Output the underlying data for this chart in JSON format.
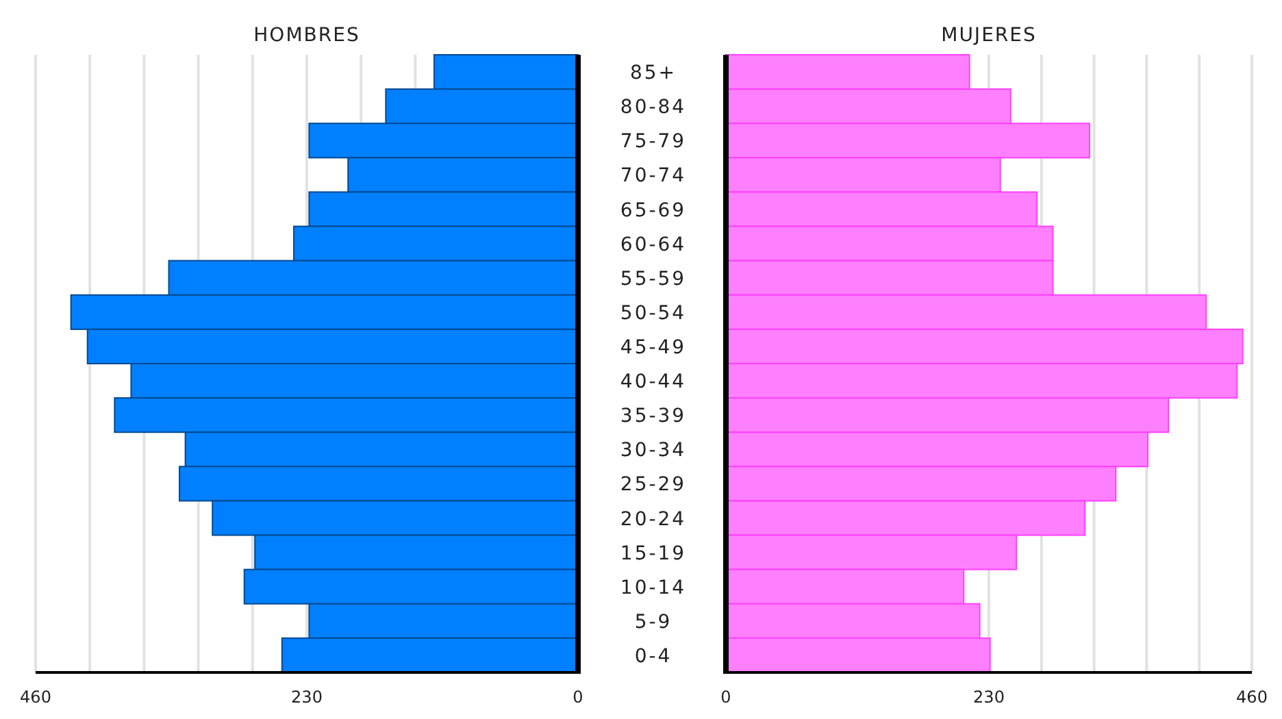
{
  "chart_data": [
    {
      "type": "bar",
      "orientation": "horizontal",
      "title": "HOMBRES",
      "grid": "x",
      "categories": [
        null,
        null,
        null,
        null,
        null,
        null,
        null,
        null,
        null,
        null,
        null,
        null,
        null,
        null,
        null,
        null,
        null,
        null
      ],
      "series": [
        {
          "color": "#0080ff",
          "values": [
            122,
            163,
            228,
            195,
            228,
            241,
            347,
            430,
            416,
            379,
            393,
            333,
            338,
            310,
            274,
            283,
            228,
            251
          ]
        }
      ],
      "xlim": [
        460,
        0
      ],
      "xticks": [
        460,
        {
          "value": 414,
          "label": null
        },
        {
          "value": 368,
          "label": null
        },
        {
          "value": 322,
          "label": null
        },
        {
          "value": 276,
          "label": null
        },
        230,
        {
          "value": 184,
          "label": null
        },
        {
          "value": 138,
          "label": null
        },
        0
      ]
    },
    {
      "type": "bar",
      "orientation": "horizontal",
      "title": "MUJERES",
      "grid": "x",
      "categories": [
        "85+",
        "80-84",
        "75-79",
        "70-74",
        "65-69",
        "60-64",
        "55-59",
        "50-54",
        "45-49",
        "40-44",
        "35-39",
        "30-34",
        "25-29",
        "20-24",
        "15-19",
        "10-14",
        "5-9",
        "0-4"
      ],
      "series": [
        {
          "color": "#ff80ff",
          "values": [
            213,
            249,
            318,
            240,
            272,
            286,
            286,
            420,
            452,
            447,
            387,
            369,
            341,
            314,
            254,
            208,
            222,
            231
          ]
        }
      ],
      "xlim": [
        0,
        460
      ],
      "xticks": [
        0,
        230,
        {
          "value": 276,
          "label": null
        },
        {
          "value": 322,
          "label": null
        },
        {
          "value": 368,
          "label": null
        },
        {
          "value": 414,
          "label": null
        },
        460
      ]
    }
  ]
}
